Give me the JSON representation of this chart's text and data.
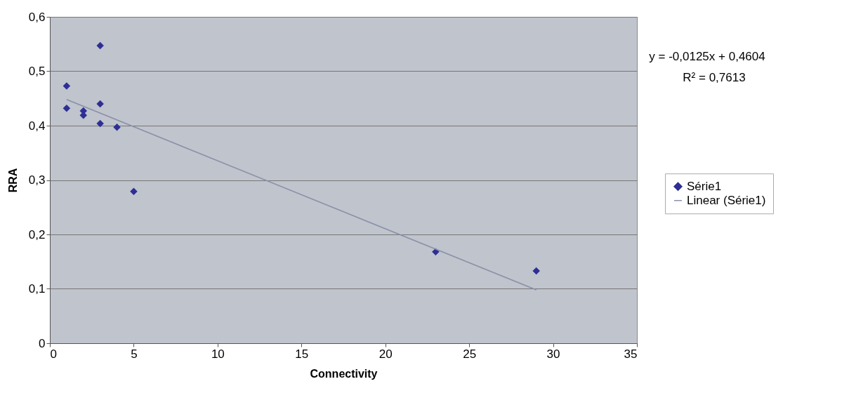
{
  "chart_data": {
    "type": "scatter",
    "xlabel": "Connectivity",
    "ylabel": "RRA",
    "series": [
      {
        "name": "Série1",
        "color": "#2e2e96",
        "marker": "diamond",
        "x": [
          1,
          1,
          2,
          2,
          3,
          3,
          3,
          4,
          5,
          23,
          29
        ],
        "values": [
          0.473,
          0.432,
          0.427,
          0.419,
          0.547,
          0.44,
          0.404,
          0.397,
          0.279,
          0.168,
          0.133
        ]
      },
      {
        "name": "Linear (Série1)",
        "type": "line",
        "color": "#8a8fa8",
        "x": [
          1,
          29
        ],
        "values": [
          0.448,
          0.098
        ]
      }
    ],
    "annotations": [
      "y = -0,0125x + 0,4604",
      "R² = 0,7613"
    ],
    "xlim": [
      0,
      35
    ],
    "xticks": [
      0,
      5,
      10,
      15,
      20,
      25,
      30,
      35
    ],
    "ylim": [
      0,
      0.6
    ],
    "yticks": [
      0,
      {
        "value": 0.1,
        "label": "0,1"
      },
      {
        "value": 0.2,
        "label": "0,2"
      },
      {
        "value": 0.3,
        "label": "0,3"
      },
      {
        "value": 0.4,
        "label": "0,4"
      },
      {
        "value": 0.5,
        "label": "0,5"
      },
      {
        "value": 0.6,
        "label": "0,6"
      }
    ],
    "grid": "y",
    "legend": "right"
  }
}
